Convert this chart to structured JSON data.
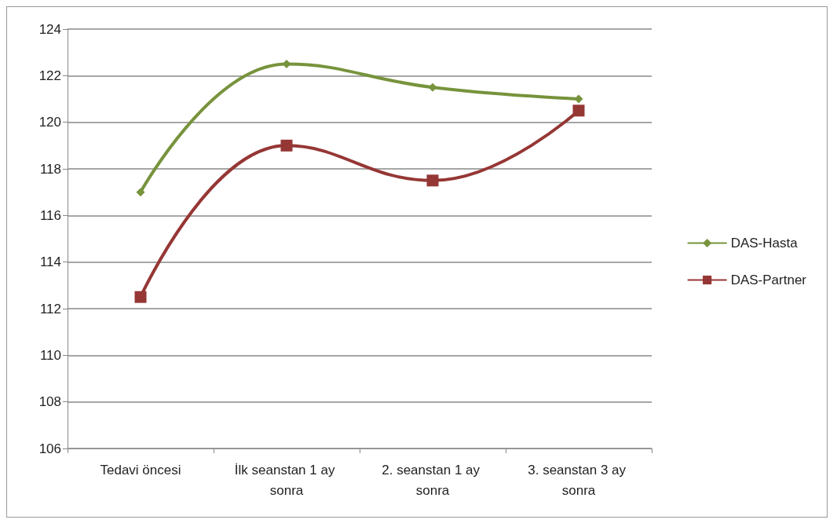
{
  "chart_data": {
    "type": "line",
    "categories": [
      "Tedavi öncesi",
      "İlk seanstan 1 ay sonra",
      "2. seanstan 1 ay sonra",
      "3. seanstan 3 ay sonra"
    ],
    "series": [
      {
        "name": "DAS-Hasta",
        "color": "#77933c",
        "marker": "diamond",
        "values": [
          117,
          122.5,
          121.5,
          121
        ]
      },
      {
        "name": "DAS-Partner",
        "color": "#953735",
        "marker": "square",
        "values": [
          112.5,
          119,
          117.5,
          120.5
        ]
      }
    ],
    "ylim": [
      106,
      124
    ],
    "yticks": [
      106,
      108,
      110,
      112,
      114,
      116,
      118,
      120,
      122,
      124
    ],
    "grid": "y",
    "legend": "right"
  }
}
